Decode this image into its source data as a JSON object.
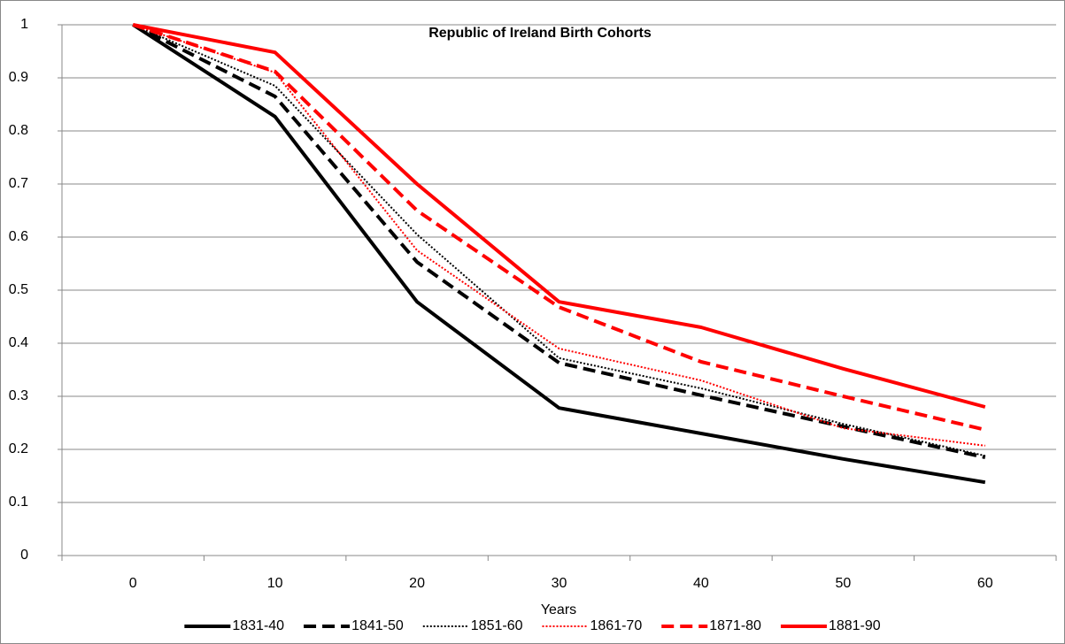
{
  "chart_data": {
    "type": "line",
    "title": "Republic of Ireland Birth Cohorts",
    "x_label": "Years",
    "categories": [
      "0",
      "10",
      "20",
      "30",
      "40",
      "50",
      "60"
    ],
    "ylim": [
      0,
      1
    ],
    "yticks": [
      0,
      0.1,
      0.2,
      0.3,
      0.4,
      0.5,
      0.6,
      0.7,
      0.8,
      0.9,
      1
    ],
    "grid": true,
    "legend": "bottom",
    "series": [
      {
        "name": "1831-40",
        "color": "#000000",
        "style": "solid",
        "values": [
          1,
          0.827,
          0.478,
          0.278,
          0.23,
          0.182,
          0.138
        ]
      },
      {
        "name": "1841-50",
        "color": "#000000",
        "style": "dash",
        "values": [
          1,
          0.865,
          0.553,
          0.363,
          0.302,
          0.243,
          0.185
        ]
      },
      {
        "name": "1851-60",
        "color": "#000000",
        "style": "dot",
        "values": [
          1,
          0.885,
          0.605,
          0.372,
          0.315,
          0.248,
          0.188
        ]
      },
      {
        "name": "1861-70",
        "color": "#ff0000",
        "style": "dot",
        "values": [
          1,
          0.91,
          0.575,
          0.39,
          0.33,
          0.24,
          0.207
        ]
      },
      {
        "name": "1871-80",
        "color": "#ff0000",
        "style": "dash",
        "values": [
          1,
          0.912,
          0.65,
          0.468,
          0.365,
          0.3,
          0.237
        ]
      },
      {
        "name": "1881-90",
        "color": "#ff0000",
        "style": "solid",
        "values": [
          1,
          0.948,
          0.7,
          0.478,
          0.43,
          0.352,
          0.28
        ]
      }
    ]
  }
}
